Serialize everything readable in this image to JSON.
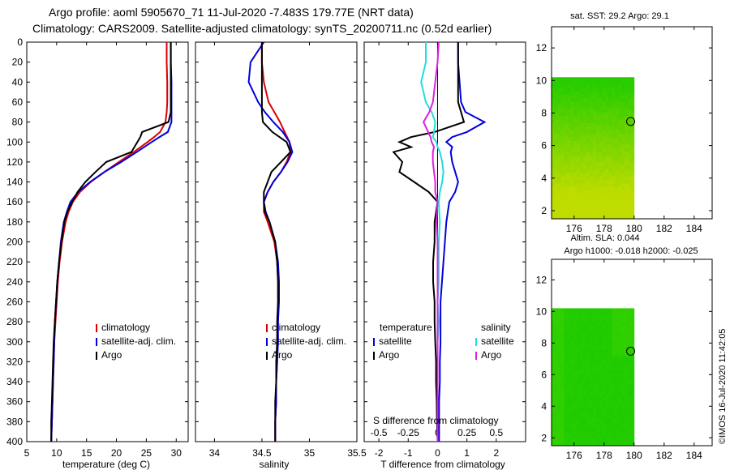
{
  "title_line1": "Argo profile: aoml 5905670_71 11-Jul-2020 -7.483S 179.77E (NRT data)",
  "title_line2": "Climatology: CARS2009. Satellite-adjusted climatology: synTS_20200711.nc (0.52d earlier)",
  "sst_title": "sat. SST: 29.2 Argo: 29.1",
  "sla_title": "Altim. SLA: 0.044",
  "argo_h_title": "Argo h1000: -0.018 h2000: -0.025",
  "credit": "©IMOS 16-Jul-2020 11:42:05",
  "colors": {
    "climatology": "#dd0000",
    "satellite": "#0000dd",
    "argo": "#000000",
    "sat_salinity": "#22dddd",
    "argo_salinity": "#dd22dd",
    "map_green": "#22cc00",
    "map_yellowgreen": "#99dd00"
  },
  "chart_data": [
    {
      "type": "line",
      "name": "temperature",
      "xlabel": "temperature (deg C)",
      "ylabel": "",
      "xlim": [
        5,
        32
      ],
      "ylim": [
        400,
        0
      ],
      "x_ticks": [
        5,
        10,
        15,
        20,
        25,
        30
      ],
      "y_ticks": [
        0,
        20,
        40,
        60,
        80,
        100,
        120,
        140,
        160,
        180,
        200,
        220,
        240,
        260,
        280,
        300,
        320,
        340,
        360,
        380,
        400
      ],
      "legend": [
        "climatology",
        "satellite-adj. clim.",
        "Argo"
      ],
      "depth": [
        0,
        20,
        40,
        60,
        70,
        80,
        90,
        95,
        100,
        110,
        120,
        130,
        140,
        150,
        160,
        170,
        180,
        200,
        220,
        240,
        260,
        280,
        300,
        320,
        340,
        360,
        380,
        400
      ],
      "series": [
        {
          "name": "climatology",
          "values": [
            28.4,
            28.4,
            28.5,
            28.5,
            28.4,
            28.2,
            27.3,
            26.3,
            25.2,
            22.9,
            20.4,
            18.0,
            15.7,
            13.9,
            12.7,
            12.0,
            11.5,
            10.9,
            10.5,
            10.2,
            10.0,
            9.8,
            9.6,
            9.5,
            9.4,
            9.3,
            9.2,
            9.1
          ]
        },
        {
          "name": "satellite-adj. clim.",
          "values": [
            29.1,
            29.1,
            29.2,
            29.2,
            29.2,
            29.2,
            28.6,
            27.2,
            25.9,
            23.4,
            20.8,
            18.0,
            15.6,
            13.6,
            12.3,
            11.7,
            11.2,
            10.7,
            10.4,
            10.1,
            9.9,
            9.7,
            9.6,
            9.5,
            9.4,
            9.3,
            9.2,
            9.1
          ]
        },
        {
          "name": "Argo",
          "values": [
            29.1,
            29.1,
            29.1,
            29.1,
            29.1,
            28.7,
            24.3,
            24.0,
            23.5,
            22.5,
            18.3,
            16.5,
            14.8,
            13.5,
            12.6,
            11.8,
            11.3,
            10.8,
            10.4,
            10.1,
            9.9,
            9.7,
            9.5,
            9.4,
            9.3,
            9.2,
            9.1,
            9.1
          ]
        }
      ]
    },
    {
      "type": "line",
      "name": "salinity",
      "xlabel": "salinity",
      "xlim": [
        33.8,
        35.5
      ],
      "ylim": [
        400,
        0
      ],
      "x_ticks": [
        34,
        34.5,
        35,
        35.5
      ],
      "legend": [
        "climatology",
        "satellite-adj. clim.",
        "Argo"
      ],
      "depth": [
        0,
        20,
        40,
        60,
        70,
        80,
        90,
        100,
        110,
        120,
        130,
        140,
        150,
        160,
        170,
        180,
        200,
        220,
        240,
        260,
        280,
        300,
        320,
        340,
        360,
        380,
        400
      ],
      "series": [
        {
          "name": "climatology",
          "values": [
            34.5,
            34.5,
            34.52,
            34.57,
            34.63,
            34.69,
            34.74,
            34.79,
            34.8,
            34.76,
            34.7,
            34.62,
            34.56,
            34.52,
            34.52,
            34.56,
            34.63,
            34.66,
            34.67,
            34.67,
            34.67,
            34.66,
            34.66,
            34.65,
            34.65,
            34.64,
            34.64
          ]
        },
        {
          "name": "satellite-adj. clim.",
          "values": [
            34.52,
            34.38,
            34.36,
            34.46,
            34.53,
            34.62,
            34.72,
            34.79,
            34.82,
            34.77,
            34.7,
            34.62,
            34.56,
            34.52,
            34.54,
            34.58,
            34.64,
            34.67,
            34.68,
            34.68,
            34.67,
            34.67,
            34.66,
            34.65,
            34.65,
            34.64,
            34.64
          ]
        },
        {
          "name": "Argo",
          "values": [
            34.5,
            34.5,
            34.5,
            34.5,
            34.5,
            34.51,
            34.61,
            34.76,
            34.8,
            34.7,
            34.6,
            34.56,
            34.52,
            34.52,
            34.53,
            34.58,
            34.64,
            34.66,
            34.67,
            34.67,
            34.66,
            34.66,
            34.65,
            34.65,
            34.64,
            34.64,
            34.64
          ]
        }
      ]
    },
    {
      "type": "line",
      "name": "difference",
      "xlabel": "T difference from climatology",
      "x2label": "S difference from climatology",
      "xlim": [
        -2.5,
        3
      ],
      "x2lim": [
        -0.625,
        0.75
      ],
      "ylim": [
        400,
        0
      ],
      "x_ticks": [
        -2,
        -1,
        0,
        1,
        2
      ],
      "x2_ticks": [
        -0.5,
        -0.25,
        0,
        0.25,
        0.5
      ],
      "legend_temperature": {
        "title": "temperature",
        "items": [
          "satellite",
          "Argo"
        ]
      },
      "legend_salinity": {
        "title": "salinity",
        "items": [
          "satellite",
          "Argo"
        ]
      },
      "depth": [
        0,
        20,
        40,
        60,
        70,
        80,
        90,
        95,
        100,
        105,
        110,
        120,
        130,
        140,
        150,
        160,
        180,
        200,
        220,
        240,
        260,
        280,
        300,
        320,
        340,
        360,
        380,
        400
      ],
      "series": [
        {
          "name": "T satellite",
          "values": [
            0.7,
            0.7,
            0.75,
            0.8,
            0.95,
            1.6,
            1.0,
            0.5,
            0.3,
            0.5,
            0.45,
            0.5,
            0.6,
            0.7,
            0.6,
            0.4,
            0.3,
            0.25,
            0.2,
            0.15,
            0.1,
            0.1,
            0.1,
            0.08,
            0.08,
            0.05,
            0.05,
            0.05
          ]
        },
        {
          "name": "T Argo",
          "values": [
            0.7,
            0.7,
            0.7,
            0.7,
            0.8,
            0.9,
            -0.1,
            -0.9,
            -1.3,
            -0.9,
            -1.5,
            -1.2,
            -1.3,
            -0.8,
            -0.3,
            0.0,
            -0.1,
            -0.1,
            -0.15,
            -0.15,
            -0.1,
            -0.1,
            -0.08,
            -0.05,
            -0.05,
            -0.03,
            -0.02,
            0.0
          ]
        },
        {
          "name": "S satellite",
          "values": [
            -0.1,
            -0.1,
            -0.14,
            -0.1,
            -0.05,
            -0.02,
            -0.03,
            -0.04,
            -0.01,
            0.0,
            0.02,
            0.04,
            0.05,
            0.04,
            0.02,
            0.01,
            0.02,
            0.01,
            0.01,
            0.01,
            0.0,
            0.01,
            0.0,
            0.0,
            0.0,
            0.0,
            0.0,
            0.0
          ]
        },
        {
          "name": "S Argo",
          "values": [
            0.01,
            0.0,
            -0.02,
            -0.04,
            -0.07,
            -0.12,
            -0.08,
            -0.06,
            -0.05,
            -0.03,
            -0.04,
            -0.04,
            -0.03,
            -0.02,
            -0.02,
            0.0,
            -0.01,
            0.0,
            0.0,
            0.0,
            0.0,
            0.0,
            0.0,
            0.0,
            0.0,
            0.0,
            0.0,
            0.0
          ]
        }
      ]
    },
    {
      "type": "heatmap",
      "name": "sst_map",
      "xlim": [
        174.5,
        185.2
      ],
      "ylim": [
        1.5,
        13.3
      ],
      "x_ticks": [
        176,
        178,
        180,
        182,
        184
      ],
      "y_ticks": [
        2,
        4,
        6,
        8,
        10,
        12
      ],
      "data_extent_lon": [
        174.5,
        180
      ],
      "data_extent_lat": [
        1.5,
        10.2
      ],
      "profile_marker": {
        "lon": 179.77,
        "lat": 7.483
      }
    },
    {
      "type": "heatmap",
      "name": "sla_map",
      "xlim": [
        174.5,
        185.2
      ],
      "ylim": [
        1.5,
        13.3
      ],
      "x_ticks": [
        176,
        178,
        180,
        182,
        184
      ],
      "y_ticks": [
        2,
        4,
        6,
        8,
        10,
        12
      ],
      "data_extent_lon": [
        174.5,
        180
      ],
      "data_extent_lat": [
        1.5,
        10.2
      ],
      "profile_marker": {
        "lon": 179.77,
        "lat": 7.483
      }
    }
  ]
}
